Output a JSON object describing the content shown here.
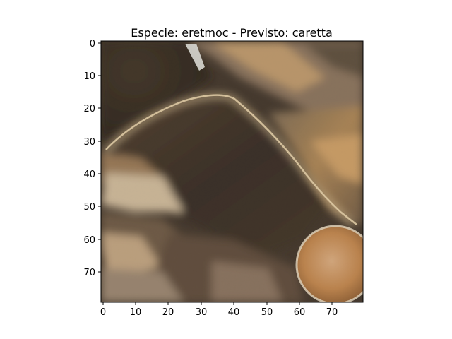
{
  "title": "Especie: eretmoc - Previsto: caretta",
  "image": {
    "description_icon": "turtle-shell-scute-texture",
    "rows": 80,
    "cols": 80
  },
  "axes": {
    "x_ticks": [
      "0",
      "10",
      "20",
      "30",
      "40",
      "50",
      "60",
      "70"
    ],
    "y_ticks": [
      "0",
      "10",
      "20",
      "30",
      "40",
      "50",
      "60",
      "70"
    ]
  }
}
